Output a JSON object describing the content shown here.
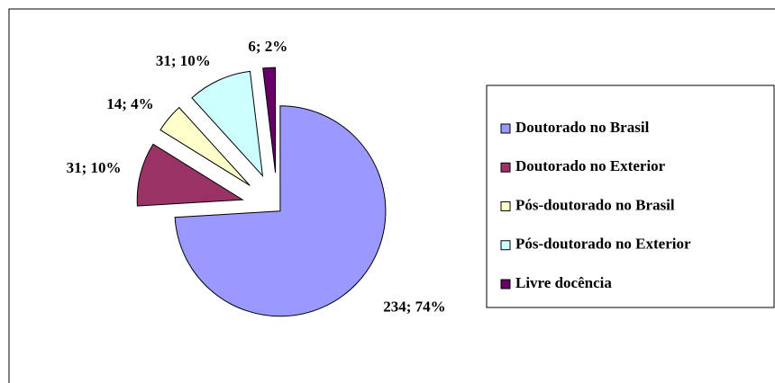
{
  "chart_data": {
    "type": "pie",
    "categories": [
      "Doutorado no Brasil",
      "Doutorado no Exterior",
      "Pós-doutorado no Brasil",
      "Pós-doutorado no Exterior",
      "Livre docência"
    ],
    "values": [
      234,
      31,
      14,
      31,
      6
    ],
    "value_labels": [
      "234; 74%",
      "31; 10%",
      "14; 4%",
      "31; 10%",
      "6; 2%"
    ],
    "colors": [
      "#9999ff",
      "#993366",
      "#ffffcc",
      "#ccffff",
      "#660066"
    ],
    "legend": "right"
  }
}
